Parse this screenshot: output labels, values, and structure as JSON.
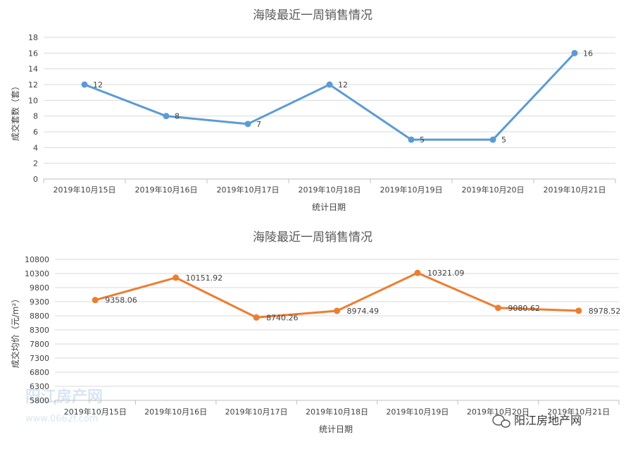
{
  "chart_data": [
    {
      "type": "line",
      "title": "海陵最近一周销售情况",
      "xlabel": "统计日期",
      "ylabel": "成交套数（套）",
      "categories": [
        "2019年10月15日",
        "2019年10月16日",
        "2019年10月17日",
        "2019年10月18日",
        "2019年10月19日",
        "2019年10月20日",
        "2019年10月21日"
      ],
      "values": [
        12,
        8,
        7,
        12,
        5,
        5,
        16
      ],
      "data_labels": [
        "12",
        "8",
        "7",
        "12",
        "5",
        "5",
        "16"
      ],
      "ylim": [
        0,
        18
      ],
      "yticks": [
        "0",
        "2",
        "4",
        "6",
        "8",
        "10",
        "12",
        "14",
        "16",
        "18"
      ],
      "grid": true,
      "color": "#5b9bd5"
    },
    {
      "type": "line",
      "title": "海陵最近一周销售情况",
      "xlabel": "统计日期",
      "ylabel": "成交均价（元/m²）",
      "categories": [
        "2019年10月15日",
        "2019年10月16日",
        "2019年10月17日",
        "2019年10月18日",
        "2019年10月19日",
        "2019年10月20日",
        "2019年10月21日"
      ],
      "values": [
        9358.06,
        10151.92,
        8740.26,
        8974.49,
        10321.09,
        9080.62,
        8978.52
      ],
      "data_labels": [
        "9358.06",
        "10151.92",
        "8740.26",
        "8974.49",
        "10321.09",
        "9080.62",
        "8978.52"
      ],
      "ylim": [
        5800,
        10800
      ],
      "yticks": [
        "5800",
        "6300",
        "6800",
        "7300",
        "7800",
        "8300",
        "8800",
        "9300",
        "9800",
        "10300",
        "10800"
      ],
      "grid": true,
      "color": "#ed7d31"
    }
  ],
  "watermark": {
    "text": "阳江房产网",
    "url_text": "www.0662f.com"
  },
  "wechat_badge": {
    "text": "阳江房地产网"
  }
}
